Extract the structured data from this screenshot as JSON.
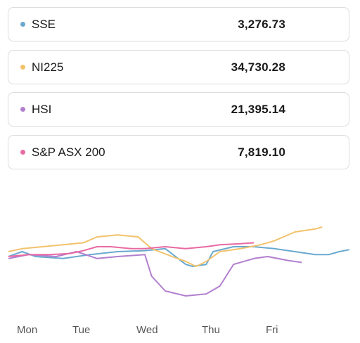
{
  "indices": [
    {
      "name": "SSE",
      "value": "3,276.73",
      "color": "#6aa9cf"
    },
    {
      "name": "NI225",
      "value": "34,730.28",
      "color": "#f2c26b"
    },
    {
      "name": "HSI",
      "value": "21,395.14",
      "color": "#b27fcf"
    },
    {
      "name": "S&P ASX 200",
      "value": "7,819.10",
      "color": "#e86aa3"
    }
  ],
  "chart_data": {
    "type": "line",
    "x_categories": [
      "Mon",
      "Tue",
      "Wed",
      "Thu",
      "Fri"
    ],
    "ylim": [
      0,
      100
    ],
    "series": [
      {
        "name": "SSE",
        "color": "#6aa9cf",
        "x": [
          0,
          0.2,
          0.4,
          0.8,
          1.2,
          1.6,
          2.0,
          2.3,
          2.6,
          2.7,
          2.9,
          3.0,
          3.3,
          3.6,
          3.9,
          4.2,
          4.5,
          4.7,
          4.85,
          5.0
        ],
        "y": [
          50,
          55,
          50,
          48,
          52,
          55,
          56,
          58,
          42,
          40,
          42,
          55,
          60,
          60,
          58,
          55,
          52,
          52,
          55,
          57
        ]
      },
      {
        "name": "NI225",
        "color": "#f2c26b",
        "x": [
          0,
          0.2,
          0.5,
          0.8,
          1.1,
          1.3,
          1.6,
          1.9,
          2.1,
          2.4,
          2.6,
          2.75,
          2.9,
          3.1,
          3.4,
          3.7,
          3.9,
          4.2,
          4.5,
          4.6
        ],
        "y": [
          55,
          58,
          60,
          62,
          64,
          70,
          72,
          70,
          58,
          50,
          45,
          40,
          45,
          55,
          58,
          62,
          66,
          75,
          78,
          80
        ]
      },
      {
        "name": "HSI",
        "color": "#b27fcf",
        "x": [
          0,
          0.3,
          0.7,
          1.0,
          1.3,
          1.6,
          2.0,
          2.1,
          2.3,
          2.6,
          2.9,
          3.1,
          3.3,
          3.6,
          3.8,
          4.1,
          4.3
        ],
        "y": [
          48,
          52,
          50,
          55,
          48,
          50,
          52,
          30,
          15,
          10,
          12,
          20,
          42,
          48,
          50,
          46,
          44
        ]
      },
      {
        "name": "S&P ASX 200",
        "color": "#e86aa3",
        "x": [
          0,
          0.3,
          0.6,
          0.9,
          1.1,
          1.3,
          1.5,
          1.8,
          2.0,
          2.3,
          2.6,
          2.9,
          3.1,
          3.4,
          3.6
        ],
        "y": [
          50,
          52,
          52,
          53,
          56,
          60,
          60,
          58,
          58,
          60,
          58,
          60,
          62,
          63,
          64
        ]
      }
    ]
  }
}
